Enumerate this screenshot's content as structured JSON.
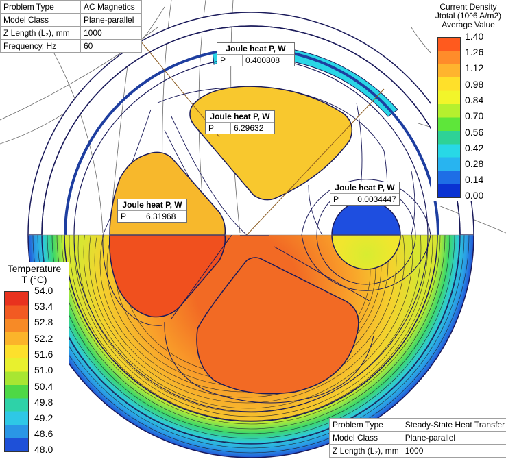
{
  "em_props": {
    "rows": [
      {
        "key": "Problem Type",
        "value": "AC Magnetics"
      },
      {
        "key": "Model Class",
        "value": "Plane-parallel"
      },
      {
        "key": "Z Length (L₂), mm",
        "value": "1000"
      },
      {
        "key": "Frequency, Hz",
        "value": "60"
      }
    ]
  },
  "heat_props": {
    "rows": [
      {
        "key": "Problem Type",
        "value": "Steady-State Heat Transfer"
      },
      {
        "key": "Model Class",
        "value": "Plane-parallel"
      },
      {
        "key": "Z Length (L₂), mm",
        "value": "1000"
      }
    ]
  },
  "current_legend": {
    "title_lines": [
      "Current Density",
      "Jtotal (10^6 A/m2)",
      "Average Value"
    ],
    "ticks": [
      "1.40",
      "1.26",
      "1.12",
      "0.98",
      "0.84",
      "0.70",
      "0.56",
      "0.42",
      "0.28",
      "0.14",
      "0.00"
    ],
    "colors": [
      "#ff5a1e",
      "#ff8c2a",
      "#ffb42e",
      "#ffe02a",
      "#f2f52a",
      "#b6f02e",
      "#5ee63a",
      "#2ed296",
      "#28d8e6",
      "#28b4f0",
      "#1e6ee6",
      "#0a32d2"
    ]
  },
  "temp_legend": {
    "title_lines": [
      "Temperature",
      "T (°C)"
    ],
    "ticks": [
      "54.0",
      "53.4",
      "52.8",
      "52.2",
      "51.6",
      "51.0",
      "50.4",
      "49.8",
      "49.2",
      "48.6",
      "48.0"
    ],
    "colors": [
      "#e8321e",
      "#f25a22",
      "#f78a26",
      "#fbb42a",
      "#fde02c",
      "#e8f02e",
      "#a8e632",
      "#4ed846",
      "#2ed2a8",
      "#2ec8e6",
      "#2a96e6",
      "#1e50d8"
    ]
  },
  "joule": [
    {
      "title": "Joule heat P, W",
      "key": "P",
      "value": "0.400808"
    },
    {
      "title": "Joule heat P, W",
      "key": "P",
      "value": "6.29632"
    },
    {
      "title": "Joule heat P, W",
      "key": "P",
      "value": "0.0034447"
    },
    {
      "title": "Joule heat P, W",
      "key": "P",
      "value": "6.31968"
    }
  ]
}
